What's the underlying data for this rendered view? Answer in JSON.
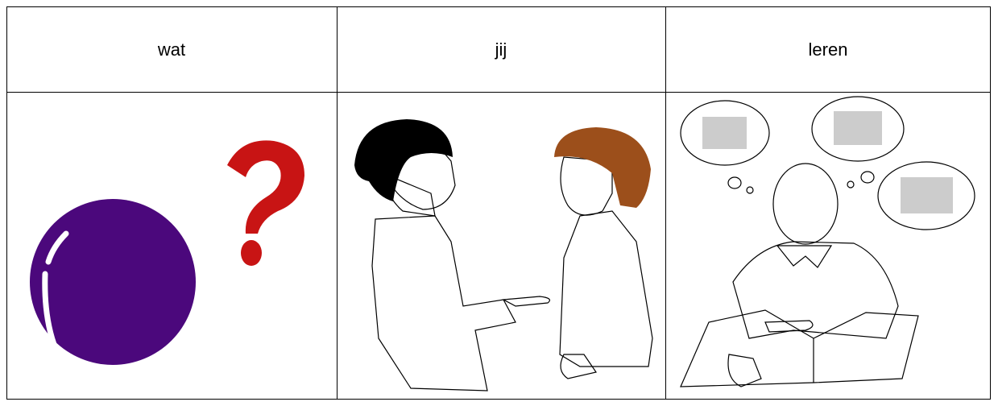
{
  "table": {
    "header": [
      "wat",
      "jij",
      "leren"
    ]
  }
}
